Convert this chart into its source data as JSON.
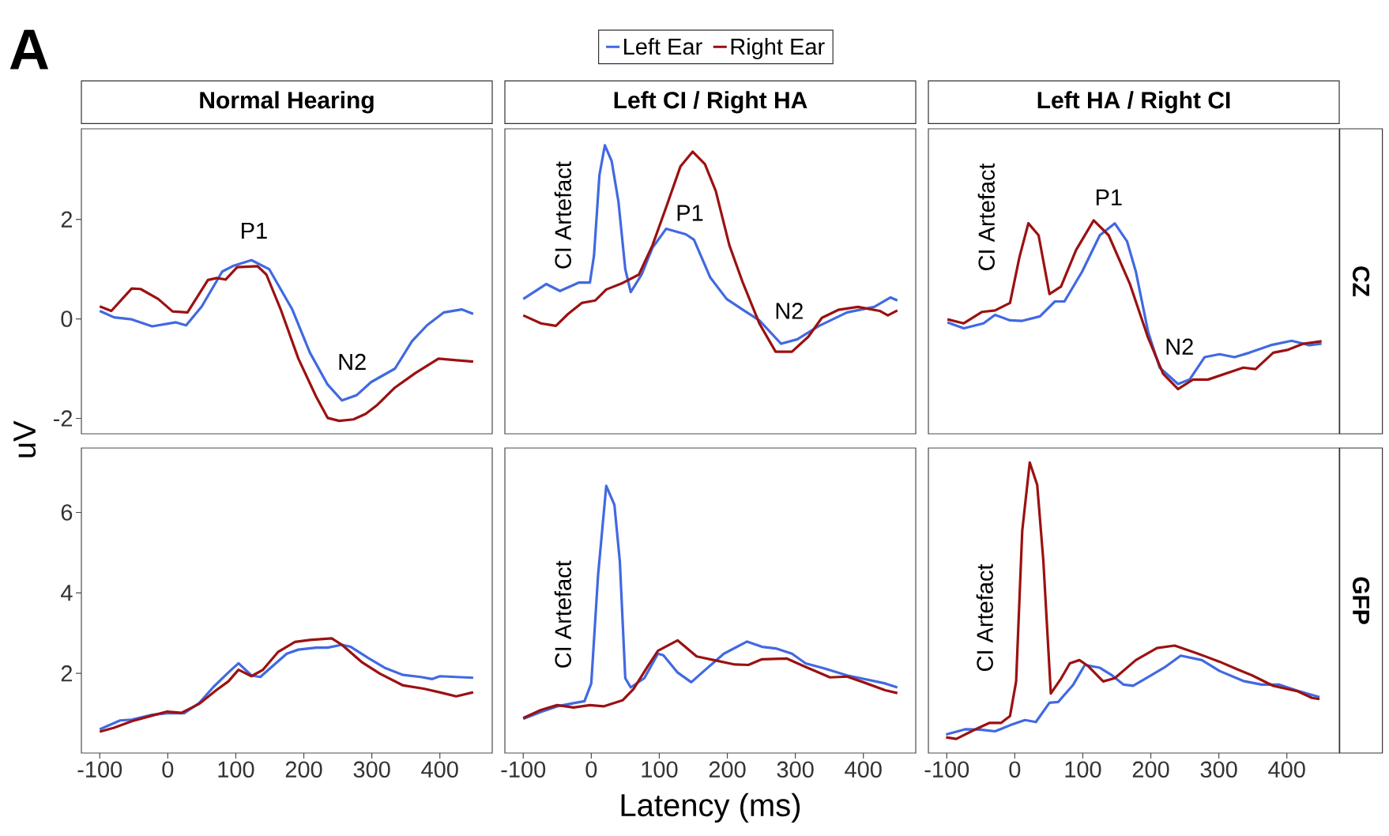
{
  "chart_data": [
    {
      "type": "line",
      "title": "Normal Hearing",
      "ylabel": "uV",
      "legend": "top",
      "tick_labels": "y",
      "annotations": [
        "A",
        "P1",
        "N2"
      ],
      "xlim": [
        -127,
        477
      ],
      "ylim": [
        -2.31,
        3.82
      ],
      "xticks": [
        -100,
        0,
        100,
        200,
        300,
        400
      ],
      "yticks": [
        -2,
        0,
        2
      ],
      "series": [
        {
          "name": "Left Ear",
          "color": "#4169e1",
          "x": [
            -100,
            -79,
            -53,
            -23,
            12,
            27,
            50,
            80,
            97,
            123,
            149,
            183,
            209,
            235,
            256,
            278,
            299,
            334,
            359,
            381,
            406,
            432,
            449
          ],
          "values": [
            0.16,
            0.03,
            -0.01,
            -0.15,
            -0.07,
            -0.13,
            0.25,
            0.95,
            1.07,
            1.18,
            1.0,
            0.19,
            -0.68,
            -1.32,
            -1.64,
            -1.53,
            -1.27,
            -1.0,
            -0.45,
            -0.13,
            0.13,
            0.19,
            0.1
          ]
        },
        {
          "name": "Right Ear",
          "color": "#9b1111",
          "x": [
            -100,
            -83,
            -53,
            -40,
            -14,
            7,
            29,
            59,
            72,
            85,
            102,
            132,
            145,
            166,
            192,
            218,
            235,
            252,
            273,
            291,
            308,
            334,
            364,
            398,
            424,
            449
          ],
          "values": [
            0.25,
            0.16,
            0.61,
            0.6,
            0.4,
            0.15,
            0.13,
            0.78,
            0.82,
            0.79,
            1.04,
            1.06,
            0.89,
            0.19,
            -0.8,
            -1.56,
            -1.99,
            -2.05,
            -2.02,
            -1.91,
            -1.73,
            -1.38,
            -1.09,
            -0.8,
            -0.83,
            -0.86
          ]
        }
      ]
    },
    {
      "type": "line",
      "title": "Left CI / Right HA",
      "tick_labels": false,
      "annotations": [
        "CI Artefact",
        "P1",
        "N2"
      ],
      "xlim": [
        -127,
        477
      ],
      "ylim": [
        -2.31,
        3.82
      ],
      "xticks": [
        -100,
        0,
        100,
        200,
        300,
        400
      ],
      "yticks": [
        -2,
        0,
        2
      ],
      "series": [
        {
          "color": "#4169e1",
          "x": [
            -100,
            -66,
            -46,
            -18,
            -2,
            4,
            12,
            20,
            30,
            40,
            50,
            58,
            74,
            90,
            110,
            139,
            151,
            175,
            199,
            223,
            247,
            279,
            303,
            335,
            376,
            416,
            440,
            450
          ],
          "values": [
            0.4,
            0.7,
            0.56,
            0.73,
            0.73,
            1.27,
            2.89,
            3.49,
            3.17,
            2.35,
            1.0,
            0.54,
            0.89,
            1.43,
            1.81,
            1.7,
            1.59,
            0.83,
            0.4,
            0.18,
            -0.03,
            -0.5,
            -0.41,
            -0.14,
            0.13,
            0.24,
            0.43,
            0.37
          ]
        },
        {
          "color": "#9b1111",
          "x": [
            -100,
            -74,
            -52,
            -34,
            -14,
            6,
            22,
            46,
            70,
            90,
            110,
            131,
            149,
            167,
            183,
            203,
            223,
            247,
            271,
            295,
            319,
            339,
            363,
            392,
            424,
            436,
            450
          ],
          "values": [
            0.07,
            -0.09,
            -0.14,
            0.1,
            0.32,
            0.37,
            0.59,
            0.72,
            0.89,
            1.48,
            2.24,
            3.06,
            3.36,
            3.11,
            2.57,
            1.48,
            0.72,
            -0.09,
            -0.66,
            -0.66,
            -0.36,
            0.02,
            0.18,
            0.24,
            0.16,
            0.07,
            0.17
          ]
        }
      ]
    },
    {
      "type": "line",
      "title": "Left HA / Right CI",
      "y2label": "CZ",
      "tick_labels": false,
      "annotations": [
        "CI Artefact",
        "P1",
        "N2"
      ],
      "xlim": [
        -127,
        477
      ],
      "ylim": [
        -2.31,
        3.82
      ],
      "xticks": [
        -100,
        0,
        100,
        200,
        300,
        400
      ],
      "yticks": [
        -2,
        0,
        2
      ],
      "series": [
        {
          "color": "#4169e1",
          "x": [
            -99,
            -75,
            -46,
            -29,
            -7,
            11,
            37,
            59,
            73,
            99,
            125,
            147,
            165,
            178,
            196,
            213,
            240,
            257,
            279,
            301,
            323,
            345,
            376,
            407,
            433,
            451
          ],
          "values": [
            -0.07,
            -0.19,
            -0.09,
            0.08,
            -0.03,
            -0.04,
            0.05,
            0.35,
            0.35,
            0.95,
            1.68,
            1.92,
            1.56,
            0.95,
            -0.26,
            -0.98,
            -1.31,
            -1.22,
            -0.77,
            -0.71,
            -0.77,
            -0.68,
            -0.53,
            -0.44,
            -0.53,
            -0.5
          ]
        },
        {
          "color": "#9b1111",
          "x": [
            -99,
            -75,
            -48,
            -29,
            -7,
            7,
            20,
            35,
            51,
            68,
            90,
            116,
            138,
            169,
            196,
            218,
            240,
            262,
            284,
            310,
            336,
            354,
            380,
            402,
            424,
            451
          ],
          "values": [
            -0.01,
            -0.09,
            0.14,
            0.17,
            0.32,
            1.25,
            1.92,
            1.68,
            0.5,
            0.65,
            1.38,
            1.98,
            1.68,
            0.71,
            -0.38,
            -1.1,
            -1.41,
            -1.22,
            -1.22,
            -1.1,
            -0.98,
            -1.01,
            -0.68,
            -0.62,
            -0.5,
            -0.45
          ]
        }
      ]
    },
    {
      "type": "line",
      "xlim": [
        -127,
        477
      ],
      "ylim": [
        0.02,
        7.6
      ],
      "xticks": [
        -100,
        0,
        100,
        200,
        300,
        400
      ],
      "yticks": [
        2,
        4,
        6
      ],
      "series": [
        {
          "color": "#4169e1",
          "x": [
            -100,
            -70,
            -53,
            -23,
            -1,
            24,
            46,
            67,
            89,
            104,
            123,
            136,
            158,
            175,
            192,
            218,
            235,
            256,
            269,
            295,
            320,
            346,
            372,
            389,
            400,
            424,
            449
          ],
          "values": [
            0.61,
            0.83,
            0.85,
            0.97,
            1.01,
            1.01,
            1.26,
            1.66,
            2.02,
            2.25,
            1.95,
            1.91,
            2.24,
            2.49,
            2.59,
            2.64,
            2.64,
            2.71,
            2.66,
            2.38,
            2.13,
            1.96,
            1.91,
            1.86,
            1.93,
            1.91,
            1.89
          ]
        },
        {
          "color": "#9b1111",
          "x": [
            -100,
            -79,
            -53,
            -23,
            -1,
            20,
            46,
            72,
            89,
            104,
            123,
            140,
            162,
            187,
            209,
            241,
            256,
            286,
            312,
            346,
            376,
            402,
            424,
            449
          ],
          "values": [
            0.55,
            0.65,
            0.81,
            0.95,
            1.05,
            1.02,
            1.24,
            1.59,
            1.8,
            2.09,
            1.93,
            2.09,
            2.53,
            2.78,
            2.83,
            2.87,
            2.71,
            2.27,
            1.99,
            1.7,
            1.62,
            1.52,
            1.43,
            1.53
          ]
        }
      ]
    },
    {
      "type": "line",
      "xlabel": "Latency (ms)",
      "tick_labels": "x",
      "annotations": [
        "CI Artefact"
      ],
      "xlim": [
        -127,
        477
      ],
      "ylim": [
        0.02,
        7.6
      ],
      "xticks": [
        -100,
        0,
        100,
        200,
        300,
        400
      ],
      "yticks": [
        2,
        4,
        6
      ],
      "series": [
        {
          "color": "#4169e1",
          "x": [
            -100,
            -74,
            -50,
            -26,
            -10,
            0,
            10,
            22,
            34,
            42,
            50,
            58,
            78,
            98,
            106,
            127,
            147,
            167,
            195,
            229,
            251,
            271,
            295,
            315,
            343,
            376,
            404,
            432,
            450
          ],
          "values": [
            0.87,
            1.04,
            1.18,
            1.26,
            1.31,
            1.75,
            4.44,
            6.66,
            6.19,
            4.78,
            1.88,
            1.65,
            1.88,
            2.49,
            2.45,
            2.02,
            1.78,
            2.08,
            2.49,
            2.79,
            2.66,
            2.62,
            2.49,
            2.25,
            2.12,
            1.95,
            1.85,
            1.75,
            1.65
          ]
        },
        {
          "color": "#9b1111",
          "x": [
            -100,
            -74,
            -50,
            -26,
            -2,
            18,
            46,
            62,
            82,
            98,
            127,
            155,
            183,
            211,
            231,
            251,
            287,
            311,
            351,
            376,
            400,
            432,
            450
          ],
          "values": [
            0.89,
            1.09,
            1.21,
            1.15,
            1.21,
            1.18,
            1.33,
            1.61,
            2.15,
            2.56,
            2.82,
            2.42,
            2.32,
            2.22,
            2.21,
            2.35,
            2.37,
            2.19,
            1.9,
            1.92,
            1.78,
            1.58,
            1.51
          ]
        }
      ]
    },
    {
      "type": "line",
      "y2label": "GFP",
      "tick_labels": "x",
      "annotations": [
        "CI Artefact"
      ],
      "xlim": [
        -127,
        477
      ],
      "ylim": [
        0.02,
        7.6
      ],
      "xticks": [
        -100,
        0,
        100,
        200,
        300,
        400
      ],
      "yticks": [
        2,
        4,
        6
      ],
      "series": [
        {
          "color": "#4169e1",
          "x": [
            -101,
            -73,
            -51,
            -29,
            -7,
            15,
            31,
            51,
            64,
            86,
            103,
            125,
            143,
            160,
            174,
            196,
            222,
            244,
            275,
            301,
            336,
            363,
            389,
            415,
            448
          ],
          "values": [
            0.48,
            0.61,
            0.6,
            0.56,
            0.71,
            0.84,
            0.79,
            1.27,
            1.29,
            1.72,
            2.21,
            2.14,
            1.95,
            1.72,
            1.69,
            1.91,
            2.17,
            2.44,
            2.33,
            2.06,
            1.81,
            1.72,
            1.72,
            1.57,
            1.41
          ]
        },
        {
          "color": "#9b1111",
          "x": [
            -101,
            -86,
            -59,
            -37,
            -20,
            -7,
            2,
            11,
            22,
            33,
            42,
            53,
            68,
            81,
            95,
            108,
            130,
            147,
            178,
            209,
            235,
            266,
            301,
            327,
            349,
            380,
            415,
            437,
            448
          ],
          "values": [
            0.41,
            0.37,
            0.6,
            0.77,
            0.77,
            0.94,
            1.8,
            5.55,
            7.24,
            6.68,
            4.8,
            1.5,
            1.87,
            2.25,
            2.33,
            2.18,
            1.8,
            1.88,
            2.33,
            2.63,
            2.69,
            2.51,
            2.29,
            2.1,
            1.95,
            1.69,
            1.56,
            1.39,
            1.36
          ]
        }
      ]
    }
  ]
}
